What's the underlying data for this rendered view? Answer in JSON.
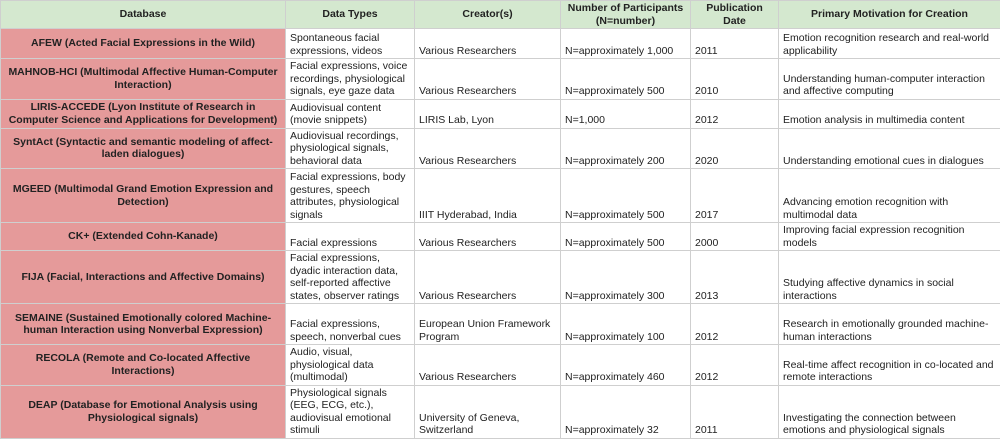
{
  "table": {
    "header": [
      "Database",
      "Data Types",
      "Creator(s)",
      "Number of Participants (N=number)",
      "Publication Date",
      "Primary Motivation for Creation"
    ],
    "rows": [
      [
        "AFEW (Acted Facial Expressions in the Wild)",
        "Spontaneous facial expressions, videos",
        "Various Researchers",
        "N=approximately 1,000",
        "2011",
        "Emotion recognition research and real-world applicability"
      ],
      [
        "MAHNOB-HCI (Multimodal Affective Human-Computer Interaction)",
        "Facial expressions, voice recordings, physiological signals, eye gaze data",
        "Various Researchers",
        "N=approximately 500",
        "2010",
        "Understanding human-computer interaction and affective computing"
      ],
      [
        "LIRIS-ACCEDE (Lyon Institute of Research in Computer Science and Applications for Development)",
        "Audiovisual content (movie snippets)",
        "LIRIS Lab, Lyon",
        "N=1,000",
        "2012",
        "Emotion analysis in multimedia content"
      ],
      [
        "SyntAct (Syntactic and semantic modeling of affect-laden dialogues)",
        "Audiovisual recordings, physiological signals, behavioral data",
        "Various Researchers",
        "N=approximately 200",
        "2020",
        "Understanding emotional cues in dialogues"
      ],
      [
        "MGEED (Multimodal Grand Emotion Expression and Detection)",
        "Facial expressions, body gestures, speech attributes, physiological signals",
        "IIIT Hyderabad, India",
        "N=approximately 500",
        "2017",
        "Advancing emotion recognition with multimodal data"
      ],
      [
        "CK+ (Extended Cohn-Kanade)",
        "Facial expressions",
        "Various Researchers",
        "N=approximately 500",
        "2000",
        "Improving facial expression recognition models"
      ],
      [
        "FIJA (Facial, Interactions and Affective Domains)",
        "Facial expressions, dyadic interaction data, self-reported affective states, observer ratings",
        "Various Researchers",
        "N=approximately 300",
        "2013",
        "Studying affective dynamics in social interactions"
      ],
      [
        "SEMAINE (Sustained Emotionally colored Machine-human Interaction using Nonverbal Expression)",
        "Facial expressions, speech, nonverbal cues",
        "European Union Framework Program",
        "N=approximately 100",
        "2012",
        "Research in emotionally grounded machine-human interactions"
      ],
      [
        "RECOLA (Remote and Co-located Affective Interactions)",
        "Audio, visual, physiological data (multimodal)",
        "Various Researchers",
        "N=approximately 460",
        "2012",
        "Real-time affect recognition in co-located and remote interactions"
      ],
      [
        "DEAP (Database for Emotional Analysis using Physiological signals)",
        "Physiological signals (EEG, ECG, etc.), audiovisual emotional stimuli",
        "University of Geneva, Switzerland",
        "N=approximately 32",
        "2011",
        "Investigating the connection between emotions and physiological signals"
      ]
    ]
  }
}
